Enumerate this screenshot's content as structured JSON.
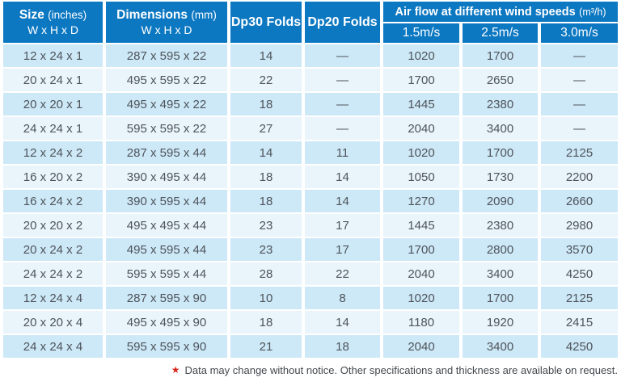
{
  "colors": {
    "header_bg": "#0d78c2",
    "header_text": "#ffffff",
    "row_odd": "#cde8f7",
    "row_even": "#e9f4fb",
    "cell_text": "#4e545a",
    "footnote_text": "#43484d",
    "star": "#d9251d"
  },
  "header": {
    "size": {
      "title": "Size",
      "unit": "(inches)",
      "sub": "W x H x D"
    },
    "dimensions": {
      "title": "Dimensions",
      "unit": "(mm)",
      "sub": "W x H x D"
    },
    "dp30_label": "Dp30 Folds",
    "dp20_label": "Dp20 Folds",
    "airflow": {
      "title": "Air flow at different wind speeds",
      "unit": "(m³/h)",
      "speeds": [
        "1.5m/s",
        "2.5m/s",
        "3.0m/s"
      ]
    }
  },
  "chart_data": {
    "type": "table",
    "columns": [
      "Size (inches) W x H x D",
      "Dimensions (mm) W x H x D",
      "Dp30 Folds",
      "Dp20 Folds",
      "Air flow at 1.5m/s (m³/h)",
      "Air flow at 2.5m/s (m³/h)",
      "Air flow at 3.0m/s (m³/h)"
    ],
    "rows": [
      {
        "size": "12 x 24 x 1",
        "dimensions": "287 x 595 x 22",
        "dp30": "14",
        "dp20": "—",
        "airflow": [
          "1020",
          "1700",
          "—"
        ]
      },
      {
        "size": "20 x 24 x 1",
        "dimensions": "495 x 595 x 22",
        "dp30": "22",
        "dp20": "—",
        "airflow": [
          "1700",
          "2650",
          "—"
        ]
      },
      {
        "size": "20 x 20 x 1",
        "dimensions": "495 x 495 x 22",
        "dp30": "18",
        "dp20": "—",
        "airflow": [
          "1445",
          "2380",
          "—"
        ]
      },
      {
        "size": "24 x 24 x 1",
        "dimensions": "595 x 595 x 22",
        "dp30": "27",
        "dp20": "—",
        "airflow": [
          "2040",
          "3400",
          "—"
        ]
      },
      {
        "size": "12 x 24 x 2",
        "dimensions": "287 x 595 x 44",
        "dp30": "14",
        "dp20": "11",
        "airflow": [
          "1020",
          "1700",
          "2125"
        ]
      },
      {
        "size": "16 x 20 x 2",
        "dimensions": "390 x 495 x 44",
        "dp30": "18",
        "dp20": "14",
        "airflow": [
          "1050",
          "1730",
          "2200"
        ]
      },
      {
        "size": "16 x 24 x 2",
        "dimensions": "390 x 595 x 44",
        "dp30": "18",
        "dp20": "14",
        "airflow": [
          "1270",
          "2090",
          "2660"
        ]
      },
      {
        "size": "20 x 20 x 2",
        "dimensions": "495 x 495 x 44",
        "dp30": "23",
        "dp20": "17",
        "airflow": [
          "1445",
          "2380",
          "2980"
        ]
      },
      {
        "size": "20 x 24 x 2",
        "dimensions": "495 x 595 x 44",
        "dp30": "23",
        "dp20": "17",
        "airflow": [
          "1700",
          "2800",
          "3570"
        ]
      },
      {
        "size": "24 x 24 x 2",
        "dimensions": "595 x 595 x 44",
        "dp30": "28",
        "dp20": "22",
        "airflow": [
          "2040",
          "3400",
          "4250"
        ]
      },
      {
        "size": "12 x 24 x 4",
        "dimensions": "287 x 595 x 90",
        "dp30": "10",
        "dp20": "8",
        "airflow": [
          "1020",
          "1700",
          "2125"
        ]
      },
      {
        "size": "20 x 20 x 4",
        "dimensions": "495 x 495 x 90",
        "dp30": "18",
        "dp20": "14",
        "airflow": [
          "1180",
          "1920",
          "2415"
        ]
      },
      {
        "size": "24 x 24 x 4",
        "dimensions": "595 x 595 x 90",
        "dp30": "21",
        "dp20": "18",
        "airflow": [
          "2040",
          "3400",
          "4250"
        ]
      }
    ]
  },
  "footnote": {
    "star": "★",
    "text": "Data may change without notice. Other specifications and thickness are available on request."
  }
}
